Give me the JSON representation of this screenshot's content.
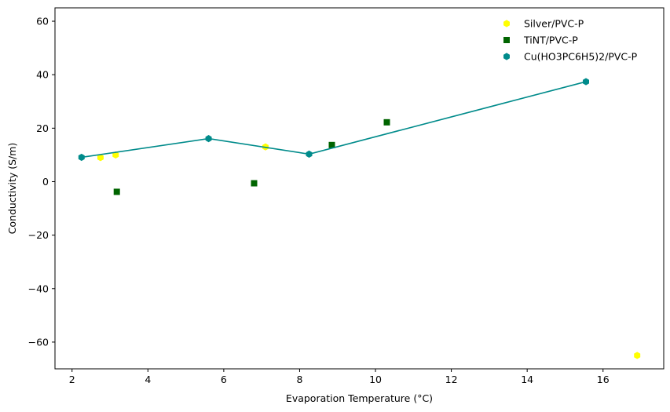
{
  "chart_data": {
    "type": "scatter",
    "title": "",
    "xlabel": "Evaporation Temperature (°C)",
    "ylabel": "Conductivity (S/m)",
    "xlim": [
      1.55,
      17.6
    ],
    "ylim": [
      -70,
      65
    ],
    "xticks": [
      2,
      4,
      6,
      8,
      10,
      12,
      14,
      16
    ],
    "yticks": [
      -60,
      -40,
      -20,
      0,
      20,
      40,
      60
    ],
    "xtick_labels": [
      "2",
      "4",
      "6",
      "8",
      "10",
      "12",
      "14",
      "16"
    ],
    "ytick_labels": [
      "−60",
      "−40",
      "−20",
      "0",
      "20",
      "40",
      "60"
    ],
    "grid": false,
    "legend_position": "top-right",
    "series": [
      {
        "name": "Silver/PVC-P",
        "marker": "hexagon",
        "color": "#ffff00",
        "line": false,
        "points": [
          {
            "x": 2.75,
            "y": 9
          },
          {
            "x": 3.15,
            "y": 10
          },
          {
            "x": 7.1,
            "y": 13
          },
          {
            "x": 16.9,
            "y": -65
          }
        ]
      },
      {
        "name": "TiNT/PVC-P",
        "marker": "square",
        "color": "#006400",
        "line": false,
        "points": [
          {
            "x": 3.18,
            "y": -3.8
          },
          {
            "x": 6.8,
            "y": -0.6
          },
          {
            "x": 8.85,
            "y": 13.7
          },
          {
            "x": 10.3,
            "y": 22.2
          }
        ]
      },
      {
        "name": "Cu(HO3PC6H5)2/PVC-P",
        "marker": "hexagon",
        "color": "#008b8b",
        "line": true,
        "points": [
          {
            "x": 2.25,
            "y": 9.1
          },
          {
            "x": 5.6,
            "y": 16.1
          },
          {
            "x": 8.25,
            "y": 10.3
          },
          {
            "x": 15.55,
            "y": 37.4
          }
        ]
      }
    ]
  }
}
